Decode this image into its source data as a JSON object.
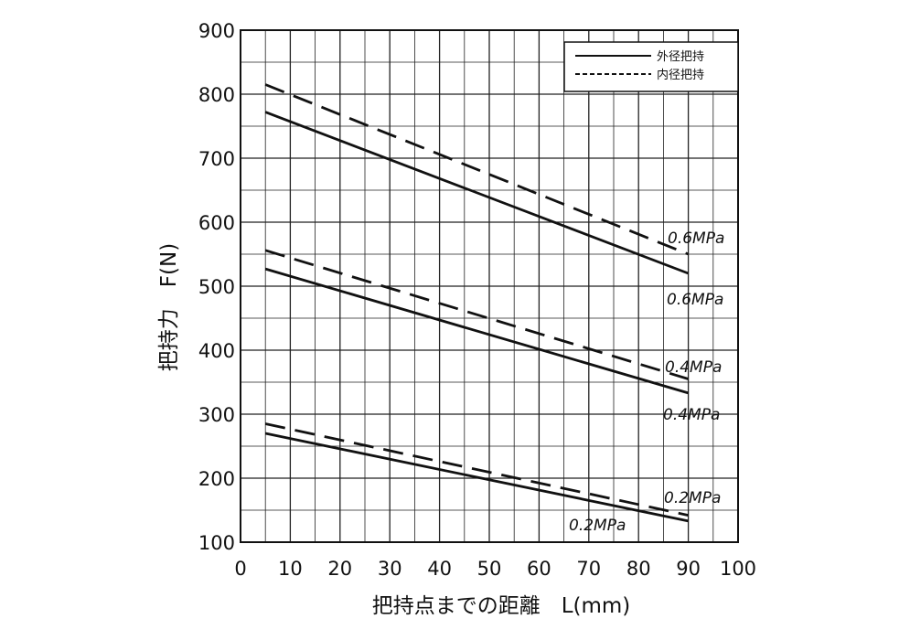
{
  "chart_data": {
    "type": "line",
    "xlabel": "把持点までの距離　L(mm)",
    "ylabel": "把持力　F(N)",
    "xlim": [
      0,
      100
    ],
    "ylim": [
      100,
      900
    ],
    "xticks": [
      0,
      10,
      20,
      30,
      40,
      50,
      60,
      70,
      80,
      90,
      100
    ],
    "yticks": [
      100,
      200,
      300,
      400,
      500,
      600,
      700,
      800,
      900
    ],
    "x_minor_step": 5,
    "y_minor_step": 50,
    "grid": true,
    "legend_position": "top-right",
    "legend": [
      {
        "label": "外径把持",
        "style": "solid"
      },
      {
        "label": "内径把持",
        "style": "dashed"
      }
    ],
    "series": [
      {
        "group": "外径把持",
        "pressure": "0.6MPa",
        "style": "solid",
        "x": [
          5,
          90
        ],
        "y": [
          772,
          520
        ]
      },
      {
        "group": "内径把持",
        "pressure": "0.6MPa",
        "style": "dashed",
        "x": [
          5,
          90
        ],
        "y": [
          815,
          550
        ]
      },
      {
        "group": "外径把持",
        "pressure": "0.4MPa",
        "style": "solid",
        "x": [
          5,
          90
        ],
        "y": [
          527,
          333
        ]
      },
      {
        "group": "内径把持",
        "pressure": "0.4MPa",
        "style": "dashed",
        "x": [
          5,
          90
        ],
        "y": [
          556,
          355
        ]
      },
      {
        "group": "外径把持",
        "pressure": "0.2MPa",
        "style": "solid",
        "x": [
          5,
          90
        ],
        "y": [
          270,
          133
        ]
      },
      {
        "group": "内径把持",
        "pressure": "0.2MPa",
        "style": "dashed",
        "x": [
          5,
          90
        ],
        "y": [
          285,
          142
        ]
      }
    ]
  }
}
